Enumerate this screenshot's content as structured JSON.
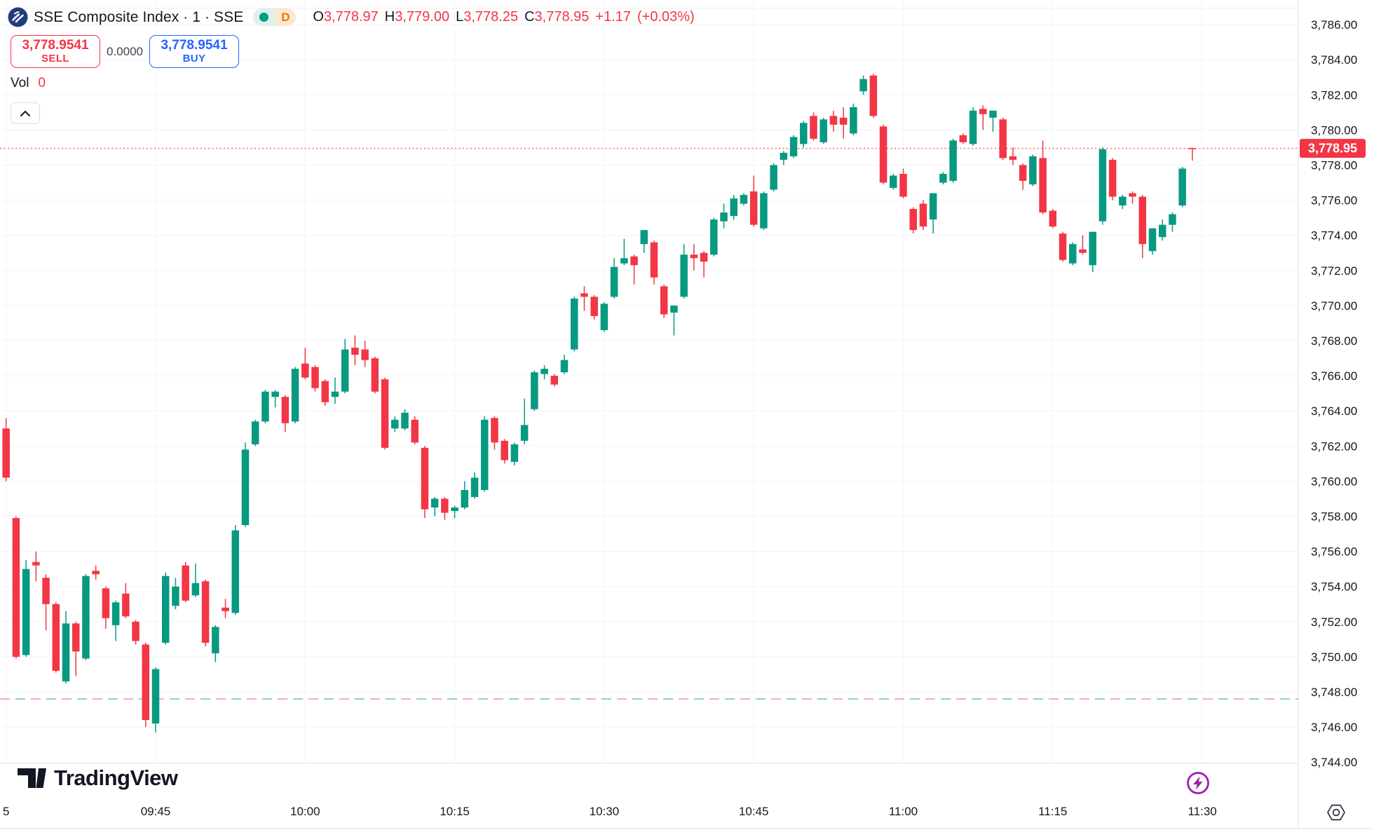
{
  "header": {
    "symbol_title": "SSE Composite Index · 1 · SSE",
    "market_status_icon": "green-dot",
    "timeframe_badge": "D",
    "ohlc": {
      "o_label": "O",
      "o": "3,778.97",
      "h_label": "H",
      "h": "3,779.00",
      "l_label": "L",
      "l": "3,778.25",
      "c_label": "C",
      "c": "3,778.95",
      "change": "+1.17",
      "change_pct": "(+0.03%)"
    }
  },
  "trade_panel": {
    "sell_price": "3,778.9541",
    "sell_label": "SELL",
    "spread": "0.0000",
    "buy_price": "3,778.9541",
    "buy_label": "BUY",
    "vol_label": "Vol",
    "vol_value": "0"
  },
  "watermark": {
    "brand": "TradingView"
  },
  "price_axis": {
    "ticks": [
      "3,786.00",
      "3,784.00",
      "3,782.00",
      "3,780.00",
      "3,778.00",
      "3,776.00",
      "3,774.00",
      "3,772.00",
      "3,770.00",
      "3,768.00",
      "3,766.00",
      "3,764.00",
      "3,762.00",
      "3,760.00",
      "3,758.00",
      "3,756.00",
      "3,754.00",
      "3,752.00",
      "3,750.00",
      "3,748.00",
      "3,746.00",
      "3,744.00"
    ],
    "last_price_label": "3,778.95"
  },
  "time_axis": {
    "labels": [
      {
        "text": "5",
        "index": 0
      },
      {
        "text": "09:45",
        "index": 15
      },
      {
        "text": "10:00",
        "index": 30
      },
      {
        "text": "10:15",
        "index": 45
      },
      {
        "text": "10:30",
        "index": 60
      },
      {
        "text": "10:45",
        "index": 75
      },
      {
        "text": "11:00",
        "index": 90
      },
      {
        "text": "11:15",
        "index": 105
      },
      {
        "text": "11:30",
        "index": 120
      }
    ]
  },
  "colors": {
    "up": "#089981",
    "down": "#F23645",
    "buy_blue": "#2962FF",
    "text": "#131722",
    "grid": "#F0F3FA",
    "pane_top_border": "#EDF0F4",
    "axis_border": "#E0E3EB",
    "purple": "#A21CAF",
    "ref_red": "rgba(242,54,69,0.5)",
    "ref_teal": "rgba(8,153,129,0.55)"
  },
  "chart_data": {
    "type": "candlestick",
    "title": "SSE Composite Index",
    "interval": "1",
    "exchange": "SSE",
    "grid": true,
    "price_at_top": 3787.4,
    "price_at_bottom": 3743.93,
    "y_tick_step": 2,
    "last_price": 3778.95,
    "last_price_line": {
      "price": 3778.95,
      "style": "dotted",
      "color": "#F23645"
    },
    "reference_line": {
      "price": 3747.6,
      "style": "dashed",
      "colors": [
        "red",
        "teal"
      ]
    },
    "columns": [
      "time",
      "open",
      "high",
      "low",
      "close"
    ],
    "candles": [
      [
        "09:30",
        3763.0,
        3763.6,
        3760.0,
        3760.2
      ],
      [
        "09:31",
        3757.9,
        3758.0,
        3749.9,
        3750.0
      ],
      [
        "09:32",
        3750.1,
        3755.5,
        3750.0,
        3755.0
      ],
      [
        "09:33",
        3755.4,
        3756.0,
        3754.3,
        3755.2
      ],
      [
        "09:34",
        3754.5,
        3754.7,
        3751.5,
        3753.0
      ],
      [
        "09:35",
        3753.0,
        3753.1,
        3749.1,
        3749.2
      ],
      [
        "09:36",
        3748.6,
        3752.6,
        3748.5,
        3751.9
      ],
      [
        "09:37",
        3751.9,
        3752.0,
        3748.9,
        3750.3
      ],
      [
        "09:38",
        3749.9,
        3754.7,
        3749.8,
        3754.6
      ],
      [
        "09:39",
        3754.9,
        3755.2,
        3754.4,
        3754.7
      ],
      [
        "09:40",
        3753.9,
        3754.0,
        3751.6,
        3752.2
      ],
      [
        "09:41",
        3751.8,
        3753.2,
        3750.9,
        3753.1
      ],
      [
        "09:42",
        3753.6,
        3754.2,
        3752.2,
        3752.3
      ],
      [
        "09:43",
        3752.0,
        3752.1,
        3750.7,
        3750.9
      ],
      [
        "09:44",
        3750.7,
        3750.8,
        3746.0,
        3746.4
      ],
      [
        "09:45",
        3746.2,
        3749.4,
        3745.7,
        3749.3
      ],
      [
        "09:46",
        3750.8,
        3754.8,
        3750.7,
        3754.6
      ],
      [
        "09:47",
        3752.9,
        3754.5,
        3752.7,
        3754.0
      ],
      [
        "09:48",
        3755.2,
        3755.4,
        3753.1,
        3753.2
      ],
      [
        "09:49",
        3753.5,
        3755.3,
        3753.4,
        3754.2
      ],
      [
        "09:50",
        3754.3,
        3754.4,
        3750.6,
        3750.8
      ],
      [
        "09:51",
        3750.2,
        3751.8,
        3749.7,
        3751.7
      ],
      [
        "09:52",
        3752.8,
        3753.3,
        3752.2,
        3752.6
      ],
      [
        "09:53",
        3752.5,
        3757.5,
        3752.4,
        3757.2
      ],
      [
        "09:54",
        3757.5,
        3762.2,
        3757.4,
        3761.8
      ],
      [
        "09:55",
        3762.1,
        3763.5,
        3762.0,
        3763.4
      ],
      [
        "09:56",
        3763.4,
        3765.2,
        3763.3,
        3765.1
      ],
      [
        "09:57",
        3764.8,
        3765.2,
        3764.2,
        3765.1
      ],
      [
        "09:58",
        3764.8,
        3764.9,
        3762.8,
        3763.3
      ],
      [
        "09:59",
        3763.4,
        3766.5,
        3763.3,
        3766.4
      ],
      [
        "10:00",
        3766.7,
        3767.6,
        3765.8,
        3765.9
      ],
      [
        "10:01",
        3766.5,
        3766.6,
        3765.1,
        3765.3
      ],
      [
        "10:02",
        3765.7,
        3765.8,
        3764.3,
        3764.5
      ],
      [
        "10:03",
        3764.8,
        3765.9,
        3764.4,
        3765.1
      ],
      [
        "10:04",
        3765.1,
        3768.1,
        3765.0,
        3767.5
      ],
      [
        "10:05",
        3767.6,
        3768.3,
        3766.6,
        3767.2
      ],
      [
        "10:06",
        3767.5,
        3768.0,
        3766.5,
        3766.9
      ],
      [
        "10:07",
        3767.0,
        3767.1,
        3765.0,
        3765.1
      ],
      [
        "10:08",
        3765.8,
        3765.9,
        3761.8,
        3761.9
      ],
      [
        "10:09",
        3763.0,
        3763.7,
        3762.8,
        3763.5
      ],
      [
        "10:10",
        3763.0,
        3764.1,
        3762.9,
        3763.9
      ],
      [
        "10:11",
        3763.5,
        3763.7,
        3762.1,
        3762.2
      ],
      [
        "10:12",
        3761.9,
        3762.0,
        3757.9,
        3758.4
      ],
      [
        "10:13",
        3758.5,
        3759.1,
        3758.0,
        3759.0
      ],
      [
        "10:14",
        3759.0,
        3759.1,
        3757.8,
        3758.2
      ],
      [
        "10:15",
        3758.3,
        3758.6,
        3757.9,
        3758.5
      ],
      [
        "10:16",
        3758.5,
        3760.0,
        3758.4,
        3759.5
      ],
      [
        "10:17",
        3759.1,
        3760.5,
        3759.0,
        3760.2
      ],
      [
        "10:18",
        3759.5,
        3763.7,
        3759.4,
        3763.5
      ],
      [
        "10:19",
        3763.6,
        3763.7,
        3761.8,
        3762.2
      ],
      [
        "10:20",
        3762.3,
        3762.4,
        3761.0,
        3761.2
      ],
      [
        "10:21",
        3761.1,
        3762.2,
        3760.9,
        3762.1
      ],
      [
        "10:22",
        3762.3,
        3764.7,
        3762.1,
        3763.2
      ],
      [
        "10:23",
        3764.1,
        3766.3,
        3764.0,
        3766.2
      ],
      [
        "10:24",
        3766.1,
        3766.6,
        3765.8,
        3766.4
      ],
      [
        "10:25",
        3766.0,
        3766.1,
        3765.4,
        3765.5
      ],
      [
        "10:26",
        3766.2,
        3767.2,
        3766.1,
        3766.9
      ],
      [
        "10:27",
        3767.5,
        3770.5,
        3767.4,
        3770.4
      ],
      [
        "10:28",
        3770.7,
        3771.1,
        3769.7,
        3770.5
      ],
      [
        "10:29",
        3770.5,
        3770.6,
        3769.2,
        3769.4
      ],
      [
        "10:30",
        3768.6,
        3770.2,
        3768.5,
        3770.1
      ],
      [
        "10:31",
        3770.5,
        3772.7,
        3770.4,
        3772.2
      ],
      [
        "10:32",
        3772.4,
        3773.8,
        3772.3,
        3772.7
      ],
      [
        "10:33",
        3772.8,
        3772.9,
        3771.2,
        3772.3
      ],
      [
        "10:34",
        3773.5,
        3774.3,
        3773.0,
        3774.3
      ],
      [
        "10:35",
        3773.6,
        3773.7,
        3771.2,
        3771.6
      ],
      [
        "10:36",
        3771.1,
        3771.2,
        3769.3,
        3769.5
      ],
      [
        "10:37",
        3769.6,
        3770.0,
        3768.3,
        3770.0
      ],
      [
        "10:38",
        3770.5,
        3773.5,
        3770.4,
        3772.9
      ],
      [
        "10:39",
        3772.9,
        3773.5,
        3772.0,
        3772.7
      ],
      [
        "10:40",
        3773.0,
        3773.1,
        3771.6,
        3772.5
      ],
      [
        "10:41",
        3772.9,
        3775.0,
        3772.8,
        3774.9
      ],
      [
        "10:42",
        3774.8,
        3775.8,
        3774.4,
        3775.3
      ],
      [
        "10:43",
        3775.1,
        3776.3,
        3774.9,
        3776.1
      ],
      [
        "10:44",
        3775.8,
        3776.4,
        3775.7,
        3776.3
      ],
      [
        "10:45",
        3776.5,
        3777.4,
        3774.5,
        3774.6
      ],
      [
        "10:46",
        3774.4,
        3776.5,
        3774.3,
        3776.4
      ],
      [
        "10:47",
        3776.6,
        3778.1,
        3776.5,
        3778.0
      ],
      [
        "10:48",
        3778.3,
        3778.8,
        3778.0,
        3778.7
      ],
      [
        "10:49",
        3778.5,
        3779.7,
        3778.4,
        3779.6
      ],
      [
        "10:50",
        3779.2,
        3780.5,
        3779.0,
        3780.4
      ],
      [
        "10:51",
        3780.8,
        3781.0,
        3779.4,
        3779.5
      ],
      [
        "10:52",
        3779.3,
        3780.7,
        3779.2,
        3780.6
      ],
      [
        "10:53",
        3780.8,
        3781.1,
        3779.9,
        3780.3
      ],
      [
        "10:54",
        3780.7,
        3781.3,
        3779.5,
        3780.3
      ],
      [
        "10:55",
        3779.8,
        3781.5,
        3779.7,
        3781.3
      ],
      [
        "10:56",
        3782.2,
        3783.1,
        3782.0,
        3782.9
      ],
      [
        "10:57",
        3783.1,
        3783.2,
        3780.7,
        3780.8
      ],
      [
        "10:58",
        3780.2,
        3780.3,
        3776.9,
        3777.0
      ],
      [
        "10:59",
        3776.7,
        3777.5,
        3776.6,
        3777.4
      ],
      [
        "11:00",
        3777.5,
        3777.8,
        3776.1,
        3776.2
      ],
      [
        "11:01",
        3775.5,
        3775.6,
        3774.1,
        3774.3
      ],
      [
        "11:02",
        3775.8,
        3776.0,
        3774.3,
        3774.5
      ],
      [
        "11:03",
        3774.9,
        3776.4,
        3774.1,
        3776.4
      ],
      [
        "11:04",
        3777.0,
        3777.6,
        3776.9,
        3777.5
      ],
      [
        "11:05",
        3777.1,
        3779.5,
        3777.0,
        3779.4
      ],
      [
        "11:06",
        3779.7,
        3779.8,
        3779.2,
        3779.3
      ],
      [
        "11:07",
        3779.2,
        3781.3,
        3779.1,
        3781.1
      ],
      [
        "11:08",
        3781.2,
        3781.4,
        3780.0,
        3780.9
      ],
      [
        "11:09",
        3780.7,
        3781.1,
        3779.9,
        3781.1
      ],
      [
        "11:10",
        3780.6,
        3780.7,
        3778.3,
        3778.4
      ],
      [
        "11:11",
        3778.5,
        3779.0,
        3778.0,
        3778.3
      ],
      [
        "11:12",
        3778.0,
        3778.1,
        3776.6,
        3777.1
      ],
      [
        "11:13",
        3776.9,
        3778.6,
        3776.8,
        3778.5
      ],
      [
        "11:14",
        3778.4,
        3779.4,
        3775.2,
        3775.3
      ],
      [
        "11:15",
        3775.4,
        3775.5,
        3774.4,
        3774.5
      ],
      [
        "11:16",
        3774.1,
        3774.2,
        3772.5,
        3772.6
      ],
      [
        "11:17",
        3772.4,
        3773.6,
        3772.3,
        3773.5
      ],
      [
        "11:18",
        3773.2,
        3774.0,
        3772.9,
        3773.0
      ],
      [
        "11:19",
        3772.3,
        3774.2,
        3771.9,
        3774.2
      ],
      [
        "11:20",
        3774.8,
        3779.0,
        3774.6,
        3778.9
      ],
      [
        "11:21",
        3778.3,
        3778.4,
        3776.0,
        3776.2
      ],
      [
        "11:22",
        3775.7,
        3776.3,
        3775.5,
        3776.2
      ],
      [
        "11:23",
        3776.4,
        3776.5,
        3775.8,
        3776.2
      ],
      [
        "11:24",
        3776.2,
        3776.3,
        3772.7,
        3773.5
      ],
      [
        "11:25",
        3773.1,
        3774.4,
        3772.9,
        3774.4
      ],
      [
        "11:26",
        3773.9,
        3774.9,
        3773.7,
        3774.6
      ],
      [
        "11:27",
        3774.6,
        3775.3,
        3774.2,
        3775.2
      ],
      [
        "11:28",
        3775.7,
        3777.9,
        3775.6,
        3777.8
      ],
      [
        "11:29",
        3778.97,
        3779.0,
        3778.25,
        3778.95
      ]
    ]
  }
}
